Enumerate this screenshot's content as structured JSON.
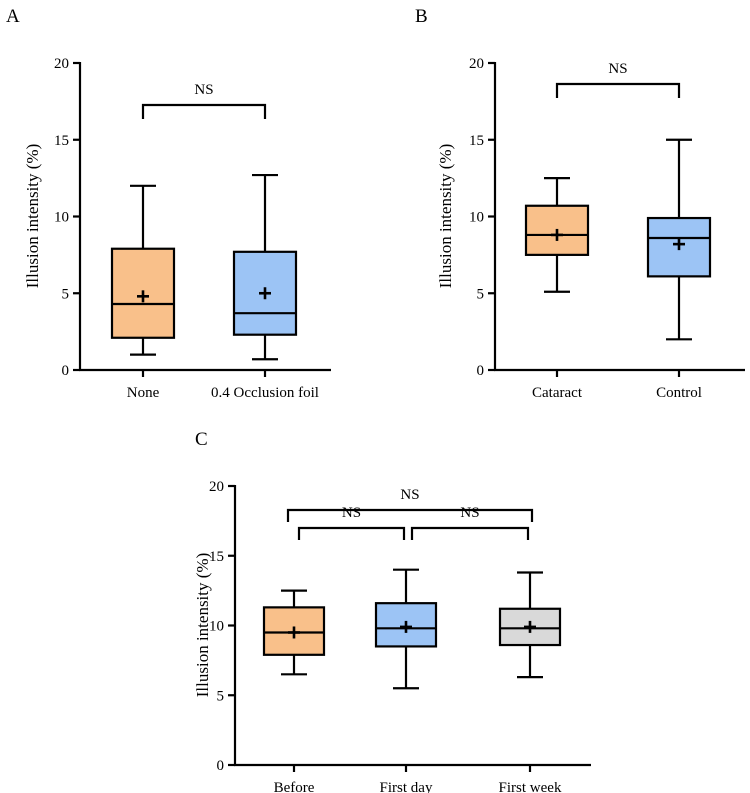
{
  "chart_data": [
    {
      "panel_label": "A",
      "type": "boxplot",
      "ylabel": "Illusion intensity (%)",
      "ylim": [
        0,
        20
      ],
      "yticks": [
        0,
        5,
        10,
        15,
        20
      ],
      "categories": [
        "None",
        "0.4 Occlusion foil"
      ],
      "boxes": [
        {
          "name": "None",
          "min": 1.0,
          "q1": 2.1,
          "median": 4.3,
          "q3": 7.9,
          "max": 12.0,
          "mean": 4.8,
          "color": "#f9c08a"
        },
        {
          "name": "0.4 Occlusion foil",
          "min": 0.7,
          "q1": 2.3,
          "median": 3.7,
          "q3": 7.7,
          "max": 12.7,
          "mean": 5.0,
          "color": "#9cc4f5"
        }
      ],
      "comparisons": [
        {
          "from": 0,
          "to": 1,
          "label": "NS"
        }
      ]
    },
    {
      "panel_label": "B",
      "type": "boxplot",
      "ylabel": "Illusion intensity (%)",
      "ylim": [
        0,
        20
      ],
      "yticks": [
        0,
        5,
        10,
        15,
        20
      ],
      "categories": [
        "Cataract",
        "Control"
      ],
      "boxes": [
        {
          "name": "Cataract",
          "min": 5.1,
          "q1": 7.5,
          "median": 8.8,
          "q3": 10.7,
          "max": 12.5,
          "mean": 8.8,
          "color": "#f9c08a"
        },
        {
          "name": "Control",
          "min": 2.0,
          "q1": 6.1,
          "median": 8.6,
          "q3": 9.9,
          "max": 15.0,
          "mean": 8.2,
          "color": "#9cc4f5"
        }
      ],
      "comparisons": [
        {
          "from": 0,
          "to": 1,
          "label": "NS"
        }
      ]
    },
    {
      "panel_label": "C",
      "type": "boxplot",
      "ylabel": "Illusion intensity (%)",
      "ylim": [
        0,
        20
      ],
      "yticks": [
        0,
        5,
        10,
        15,
        20
      ],
      "categories": [
        "Before",
        "First day",
        "First week"
      ],
      "boxes": [
        {
          "name": "Before",
          "min": 6.5,
          "q1": 7.9,
          "median": 9.5,
          "q3": 11.3,
          "max": 12.5,
          "mean": 9.5,
          "color": "#f9c08a"
        },
        {
          "name": "First day",
          "min": 5.5,
          "q1": 8.5,
          "median": 9.8,
          "q3": 11.6,
          "max": 14.0,
          "mean": 9.9,
          "color": "#9cc4f5"
        },
        {
          "name": "First week",
          "min": 6.3,
          "q1": 8.6,
          "median": 9.8,
          "q3": 11.2,
          "max": 13.8,
          "mean": 9.9,
          "color": "#d9d9d9"
        }
      ],
      "comparisons": [
        {
          "from": 0,
          "to": 1,
          "label": "NS"
        },
        {
          "from": 1,
          "to": 2,
          "label": "NS"
        },
        {
          "from": 0,
          "to": 2,
          "label": "NS"
        }
      ]
    }
  ]
}
